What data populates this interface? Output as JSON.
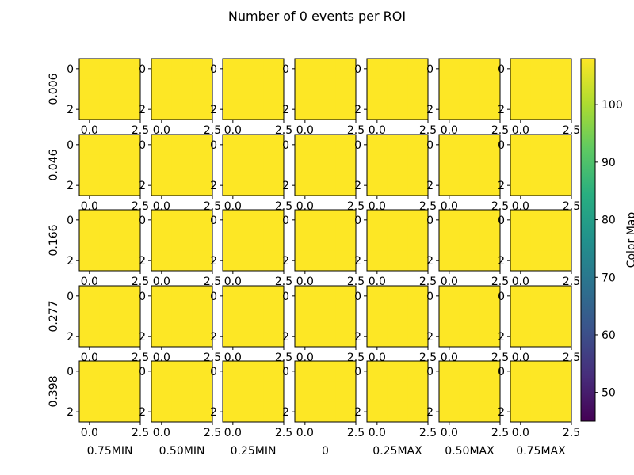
{
  "chart_data": {
    "type": "heatmap",
    "title": "Number of 0 events per ROI",
    "row_labels": [
      "0.006",
      "0.046",
      "0.166",
      "0.277",
      "0.398"
    ],
    "column_labels": [
      "0.75MIN",
      "0.50MIN",
      "0.25MIN",
      "0",
      "0.25MAX",
      "0.50MAX",
      "0.75MAX"
    ],
    "panel_grid_size": [
      3,
      3
    ],
    "panel_x_ticks": [
      "0.0",
      "2.5"
    ],
    "panel_y_ticks": [
      "0",
      "2"
    ],
    "panel_value": 108,
    "panel_color": "#fde725",
    "colorbar": {
      "label": "Color Map",
      "range": [
        45,
        108
      ],
      "ticks": [
        50,
        60,
        70,
        80,
        90,
        100
      ],
      "colormap": "viridis"
    }
  }
}
